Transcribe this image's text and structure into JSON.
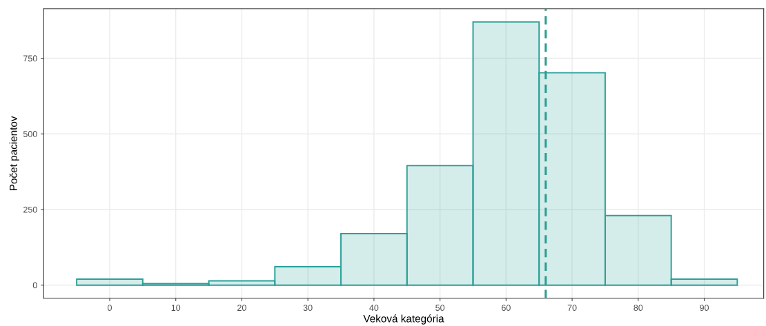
{
  "chart_data": {
    "type": "histogram",
    "xlabel": "Veková kategória",
    "ylabel": "Počet pacientov",
    "bins": [
      -5,
      5,
      15,
      25,
      35,
      45,
      55,
      65,
      75,
      85,
      95
    ],
    "values": [
      20,
      5,
      14,
      61,
      170,
      395,
      870,
      702,
      230,
      20
    ],
    "color": "#2aa198",
    "xlim": [
      -10,
      99
    ],
    "xticks": [
      0,
      10,
      20,
      30,
      40,
      50,
      60,
      70,
      80,
      90
    ],
    "ylim": [
      -43.5,
      913.5
    ],
    "yticks": [
      0,
      250,
      500,
      750
    ],
    "grid": true,
    "ref_lines": [
      {
        "axis": "x",
        "value": 66,
        "color": "#2a9d8f",
        "line_style": "dashed"
      }
    ]
  }
}
